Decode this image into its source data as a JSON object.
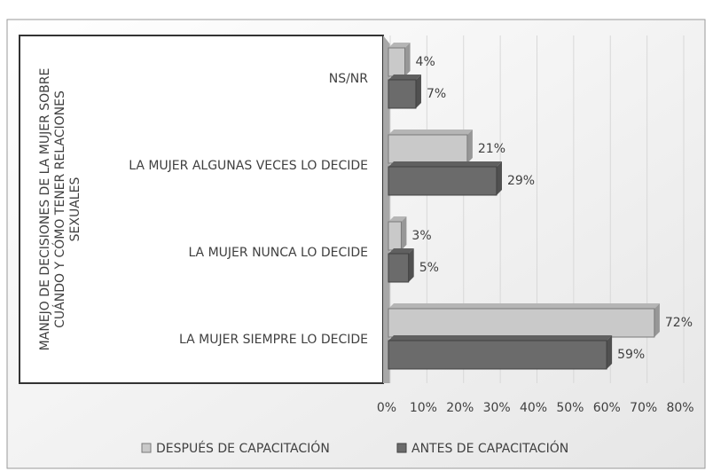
{
  "chart_data": {
    "type": "bar",
    "orientation": "horizontal",
    "ylabel_lines": [
      "MANEJO DE DECISIONES DE LA MUJER SOBRE",
      "CUÁNDO Y CÓMO TENER RELACIONES",
      "SEXUALES"
    ],
    "categories": [
      "NS/NR",
      "LA MUJER  ALGUNAS VECES LO DECIDE",
      "LA MUJER NUNCA LO DECIDE",
      "LA MUJER  SIEMPRE LO DECIDE"
    ],
    "series": [
      {
        "name": "DESPUÉS DE CAPACITACIÓN",
        "color": "#c9c9c9",
        "values": [
          4,
          21,
          3,
          72
        ],
        "value_labels": [
          "4%",
          "21%",
          "3%",
          "72%"
        ]
      },
      {
        "name": "ANTES DE CAPACITACIÓN",
        "color": "#6b6b6b",
        "values": [
          7,
          29,
          5,
          59
        ],
        "value_labels": [
          "7%",
          "29%",
          "5%",
          "59%"
        ]
      }
    ],
    "xlim": [
      0,
      80
    ],
    "xticks": [
      {
        "value": 0,
        "label": "0%"
      },
      {
        "value": 10,
        "label": "10%"
      },
      {
        "value": 20,
        "label": "20%"
      },
      {
        "value": 30,
        "label": "30%"
      },
      {
        "value": 40,
        "label": "40%"
      },
      {
        "value": 50,
        "label": "50%"
      },
      {
        "value": 60,
        "label": "60%"
      },
      {
        "value": 70,
        "label": "70%"
      },
      {
        "value": 80,
        "label": "80%"
      }
    ],
    "grid": true,
    "legend": "bottom"
  }
}
